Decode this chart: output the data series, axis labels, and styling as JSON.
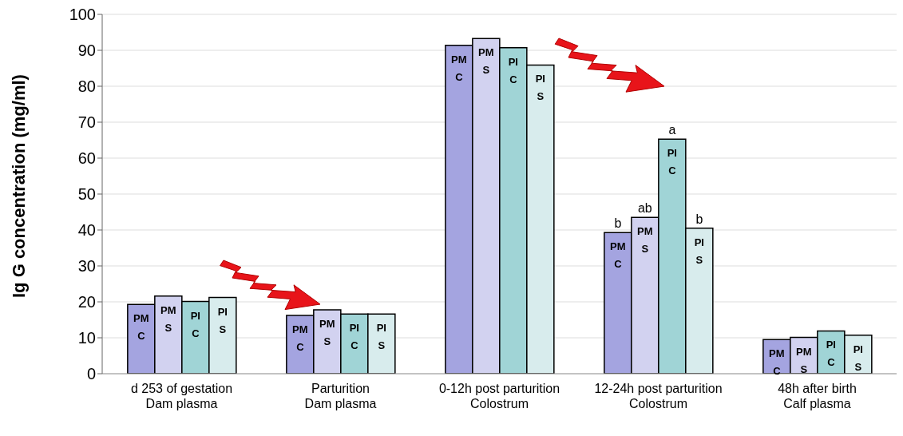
{
  "chart_data": {
    "type": "bar",
    "ylabel": "Ig G concentration (mg/ml)",
    "categories": [
      "d 253 of gestation\nDam plasma",
      "Parturition\nDam plasma",
      "0-12h post parturition\nColostrum",
      "12-24h post parturition\nColostrum",
      "48h after birth\nCalf plasma"
    ],
    "series": [
      {
        "name": "PM C",
        "color": "#a4a4e0",
        "values": [
          19.3,
          16.2,
          91.4,
          39.3,
          9.5
        ],
        "value_labels": [
          null,
          null,
          null,
          "b",
          null
        ]
      },
      {
        "name": "PM S",
        "color": "#d2d2f0",
        "values": [
          21.6,
          17.8,
          93.3,
          43.5,
          10.1
        ],
        "value_labels": [
          null,
          null,
          null,
          "ab",
          null
        ]
      },
      {
        "name": "PI C",
        "color": "#a0d4d6",
        "values": [
          20.1,
          16.6,
          90.7,
          65.3,
          11.9
        ],
        "value_labels": [
          null,
          null,
          null,
          "a",
          null
        ]
      },
      {
        "name": "PI S",
        "color": "#d8eced",
        "values": [
          21.2,
          16.6,
          85.9,
          40.5,
          10.7
        ],
        "value_labels": [
          null,
          null,
          null,
          "b",
          null
        ]
      }
    ],
    "ylim": [
      0,
      100
    ],
    "yticks": [
      0,
      10,
      20,
      30,
      40,
      50,
      60,
      70,
      80,
      90,
      100
    ],
    "grid": "y",
    "legend": false
  }
}
